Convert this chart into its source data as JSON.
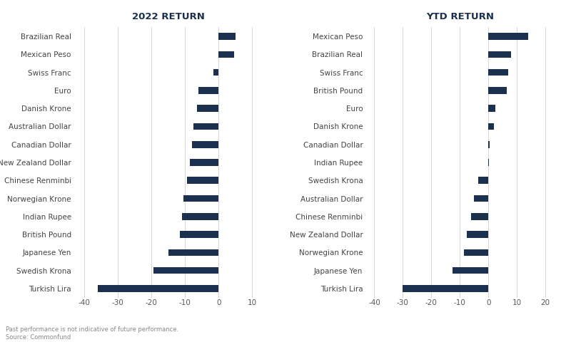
{
  "chart1_title": "2022 RETURN",
  "chart2_title": "YTD RETURN",
  "chart1_labels": [
    "Brazilian Real",
    "Mexican Peso",
    "Swiss Franc",
    "Euro",
    "Danish Krone",
    "Australian Dollar",
    "Canadian Dollar",
    "New Zealand Dollar",
    "Chinese Renminbi",
    "Norwegian Krone",
    "Indian Rupee",
    "British Pound",
    "Japanese Yen",
    "Swedish Krona",
    "Turkish Lira"
  ],
  "chart1_values": [
    5.0,
    4.5,
    -1.5,
    -6.0,
    -6.5,
    -7.5,
    -8.0,
    -8.5,
    -9.5,
    -10.5,
    -11.0,
    -11.5,
    -15.0,
    -19.5,
    -36.0
  ],
  "chart2_labels": [
    "Mexican Peso",
    "Brazilian Real",
    "Swiss Franc",
    "British Pound",
    "Euro",
    "Danish Krone",
    "Canadian Dollar",
    "Indian Rupee",
    "Swedish Krona",
    "Australian Dollar",
    "Chinese Renminbi",
    "New Zealand Dollar",
    "Norwegian Krone",
    "Japanese Yen",
    "Turkish Lira"
  ],
  "chart2_values": [
    14.0,
    8.0,
    7.0,
    6.5,
    2.5,
    2.0,
    0.5,
    0.2,
    -3.5,
    -5.0,
    -6.0,
    -7.5,
    -8.5,
    -12.5,
    -30.0
  ],
  "bar_color": "#1b2f4e",
  "bg_color": "#ffffff",
  "grid_color": "#d0d0d0",
  "chart1_xlim": [
    -43,
    13
  ],
  "chart2_xlim": [
    -43,
    23
  ],
  "chart1_xticks": [
    -40,
    -30,
    -20,
    -10,
    0,
    10
  ],
  "chart2_xticks": [
    -40,
    -30,
    -20,
    -10,
    0,
    10,
    20
  ],
  "title_fontsize": 9.5,
  "label_fontsize": 7.5,
  "tick_fontsize": 7.5,
  "footnote": "Past performance is not indicative of future performance.",
  "source": "Source: Commonfund"
}
